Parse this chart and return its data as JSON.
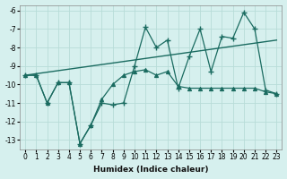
{
  "xlabel": "Humidex (Indice chaleur)",
  "background_color": "#d6f0ee",
  "grid_color": "#b8dcd8",
  "line_color": "#1a6b60",
  "xlim": [
    -0.5,
    23.5
  ],
  "ylim": [
    -13.5,
    -5.7
  ],
  "yticks": [
    -6,
    -7,
    -8,
    -9,
    -10,
    -11,
    -12,
    -13
  ],
  "xticks": [
    0,
    1,
    2,
    3,
    4,
    5,
    6,
    7,
    8,
    9,
    10,
    11,
    12,
    13,
    14,
    15,
    16,
    17,
    18,
    19,
    20,
    21,
    22,
    23
  ],
  "series1_x": [
    0,
    1,
    2,
    3,
    4,
    5,
    6,
    7,
    8,
    9,
    10,
    11,
    12,
    13,
    14,
    15,
    16,
    17,
    18,
    19,
    20,
    21,
    22,
    23
  ],
  "series1_y": [
    -9.5,
    -9.5,
    -11.0,
    -9.9,
    -9.9,
    -13.2,
    -12.2,
    -11.0,
    -11.1,
    -11.0,
    -9.0,
    -6.9,
    -8.0,
    -7.6,
    -10.2,
    -8.5,
    -7.0,
    -9.3,
    -7.4,
    -7.5,
    -6.1,
    -7.0,
    -10.3,
    -10.5
  ],
  "series2_x": [
    0,
    1,
    2,
    3,
    4,
    5,
    6,
    7,
    8,
    9,
    10,
    11,
    12,
    13,
    14,
    15,
    16,
    17,
    18,
    19,
    20,
    21,
    22,
    23
  ],
  "series2_y": [
    -9.5,
    -9.5,
    -11.0,
    -9.9,
    -9.9,
    -13.2,
    -12.2,
    -10.8,
    -10.0,
    -9.5,
    -9.3,
    -9.2,
    -9.5,
    -9.3,
    -10.1,
    -10.2,
    -10.2,
    -10.2,
    -10.2,
    -10.2,
    -10.2,
    -10.2,
    -10.4,
    -10.5
  ],
  "trend_x": [
    0,
    23
  ],
  "trend_y": [
    -9.5,
    -7.6
  ]
}
